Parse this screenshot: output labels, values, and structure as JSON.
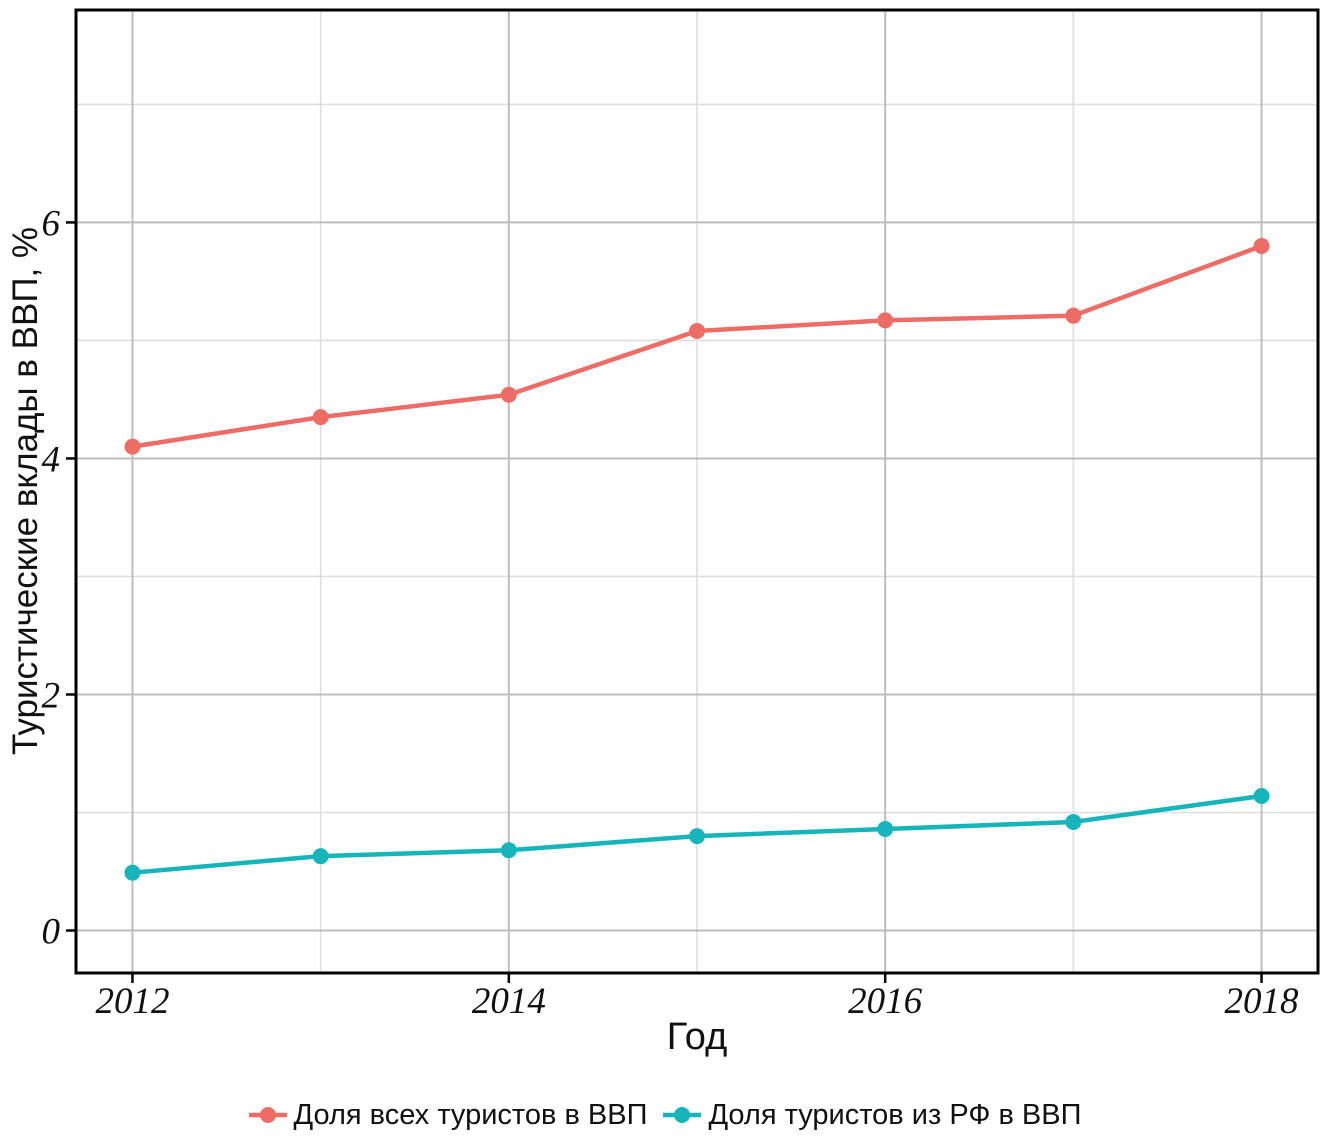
{
  "chart_data": {
    "type": "line",
    "x": [
      2012,
      2013,
      2014,
      2015,
      2016,
      2017,
      2018
    ],
    "series": [
      {
        "name": "Доля всех туристов в ВВП",
        "color": "#EE6C66",
        "values": [
          4.1,
          4.35,
          4.54,
          5.08,
          5.17,
          5.21,
          5.8
        ]
      },
      {
        "name": "Доля туристов из РФ в ВВП",
        "color": "#16B4BB",
        "values": [
          0.49,
          0.63,
          0.68,
          0.8,
          0.86,
          0.92,
          1.14
        ]
      }
    ],
    "title": "",
    "xlabel": "Год",
    "ylabel": "Туристические вклады в ВВП, %",
    "x_ticks": [
      2012,
      2014,
      2016,
      2018
    ],
    "y_ticks": [
      0,
      2,
      4,
      6
    ],
    "x_minor": [
      2013,
      2015,
      2017
    ],
    "y_minor": [
      1,
      3,
      5,
      7
    ],
    "xlim": [
      2011.7,
      2018.3
    ],
    "ylim": [
      -0.36,
      7.8
    ],
    "grid": "major+minor",
    "legend_position": "bottom-center"
  },
  "style_colors": {
    "background": "#ffffff",
    "panel_border": "#000000",
    "grid_major": "#bdbdbd",
    "grid_minor": "#dddddd",
    "tick": "#000000",
    "text": "#111111",
    "series_red": "#EE6C66",
    "series_teal": "#16B4BB"
  }
}
